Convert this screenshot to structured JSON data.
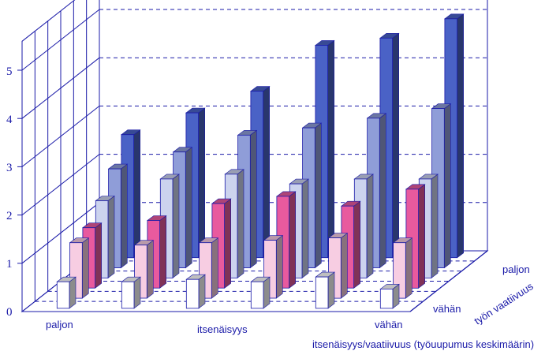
{
  "chart_data": {
    "type": "bar",
    "title": "itsenäisyys/vaatiivuus (työuupumus keskimäärin)",
    "x_axis": {
      "name": "itsenäisyys",
      "tick_labels": [
        "paljon",
        "itsenäisyys",
        "vähän"
      ],
      "groups": 6
    },
    "depth_axis": {
      "name": "työn vaatiivuus",
      "tick_labels": [
        "vähän",
        "paljon"
      ],
      "levels": 6
    },
    "y_axis": {
      "ticks": [
        0,
        1,
        2,
        3,
        4,
        5
      ],
      "ylim": [
        0,
        5
      ]
    },
    "grid": true,
    "series": [
      {
        "values": [
          0.55,
          0.55,
          0.6,
          0.55,
          0.65,
          0.4
        ]
      },
      {
        "values": [
          1.15,
          1.1,
          1.15,
          1.2,
          1.25,
          1.15
        ]
      },
      {
        "values": [
          1.25,
          1.4,
          1.75,
          1.9,
          1.7,
          2.05
        ]
      },
      {
        "values": [
          1.6,
          2.05,
          2.15,
          1.95,
          2.05,
          2.05
        ]
      },
      {
        "values": [
          2.05,
          2.4,
          2.75,
          2.9,
          3.1,
          3.3
        ]
      },
      {
        "values": [
          2.55,
          3.0,
          3.45,
          4.4,
          4.55,
          4.95
        ]
      }
    ],
    "colors": [
      "#ffffff",
      "#f7cde2",
      "#e85a9e",
      "#ccd3ee",
      "#8f9dd8",
      "#4a62c6"
    ]
  }
}
